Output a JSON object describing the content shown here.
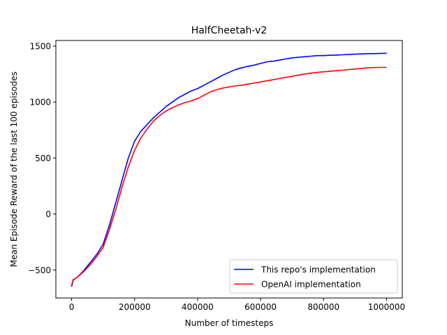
{
  "chart_data": {
    "type": "line",
    "title": "HalfCheetah-v2",
    "xlabel": "Number of timesteps",
    "ylabel": "Mean Episode Reward of the last 100 episodes",
    "xlim": [
      -50000,
      1050000
    ],
    "ylim": [
      -750,
      1550
    ],
    "xticks": [
      0,
      200000,
      400000,
      600000,
      800000,
      1000000
    ],
    "xtick_labels": [
      "0",
      "200000",
      "400000",
      "600000",
      "800000",
      "1000000"
    ],
    "yticks": [
      -500,
      0,
      500,
      1000,
      1500
    ],
    "ytick_labels": [
      "−500",
      "0",
      "500",
      "1000",
      "1500"
    ],
    "grid": false,
    "legend_position": "lower-right",
    "series": [
      {
        "name": "This repo's implementation",
        "color": "#0000ff",
        "x": [
          0,
          5000,
          10000,
          20000,
          40000,
          60000,
          80000,
          100000,
          120000,
          140000,
          160000,
          180000,
          200000,
          220000,
          240000,
          260000,
          280000,
          300000,
          320000,
          340000,
          360000,
          380000,
          400000,
          420000,
          440000,
          460000,
          480000,
          500000,
          520000,
          540000,
          560000,
          580000,
          600000,
          620000,
          640000,
          660000,
          680000,
          700000,
          720000,
          740000,
          760000,
          780000,
          800000,
          820000,
          840000,
          860000,
          880000,
          900000,
          920000,
          940000,
          960000,
          980000,
          1000000
        ],
        "y": [
          -650,
          -590,
          -580,
          -560,
          -500,
          -430,
          -360,
          -270,
          -100,
          100,
          300,
          500,
          650,
          740,
          800,
          860,
          910,
          960,
          1000,
          1040,
          1070,
          1100,
          1120,
          1150,
          1180,
          1210,
          1240,
          1265,
          1290,
          1305,
          1320,
          1330,
          1345,
          1360,
          1365,
          1375,
          1385,
          1395,
          1400,
          1405,
          1410,
          1415,
          1415,
          1418,
          1420,
          1422,
          1425,
          1428,
          1430,
          1432,
          1433,
          1434,
          1436
        ]
      },
      {
        "name": "OpenAI implementation",
        "color": "#ff0000",
        "x": [
          0,
          5000,
          10000,
          20000,
          40000,
          60000,
          80000,
          100000,
          120000,
          140000,
          160000,
          180000,
          200000,
          220000,
          240000,
          260000,
          280000,
          300000,
          320000,
          340000,
          360000,
          380000,
          400000,
          420000,
          440000,
          460000,
          480000,
          500000,
          520000,
          540000,
          560000,
          580000,
          600000,
          620000,
          640000,
          660000,
          680000,
          700000,
          720000,
          740000,
          760000,
          780000,
          800000,
          820000,
          840000,
          860000,
          880000,
          900000,
          920000,
          940000,
          960000,
          980000,
          1000000
        ],
        "y": [
          -640,
          -585,
          -580,
          -560,
          -510,
          -450,
          -380,
          -300,
          -140,
          40,
          240,
          420,
          570,
          680,
          760,
          830,
          880,
          920,
          950,
          975,
          995,
          1010,
          1030,
          1060,
          1090,
          1110,
          1125,
          1135,
          1145,
          1150,
          1160,
          1170,
          1180,
          1190,
          1200,
          1210,
          1220,
          1230,
          1240,
          1250,
          1258,
          1265,
          1270,
          1275,
          1280,
          1285,
          1290,
          1295,
          1300,
          1305,
          1308,
          1310,
          1310
        ]
      }
    ]
  }
}
